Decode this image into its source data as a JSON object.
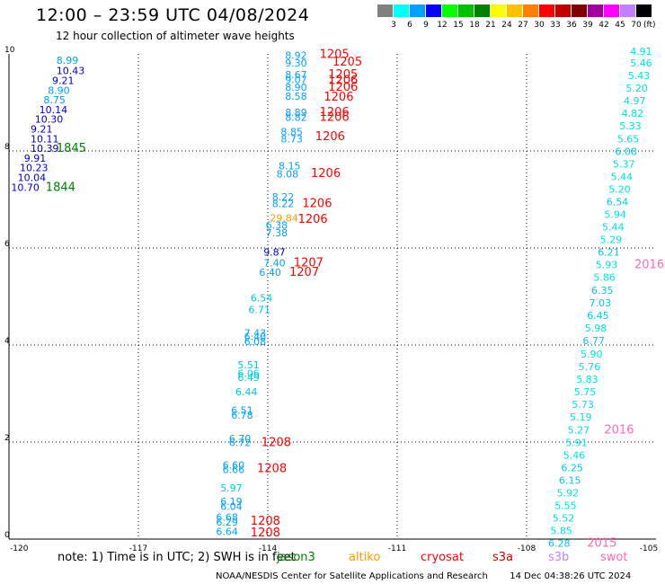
{
  "header": {
    "title": "12:00 – 23:59 UTC 04/08/2024",
    "subtitle": "12 hour collection of altimeter wave heights"
  },
  "colorbar": {
    "colors": [
      "#808080",
      "#00ffff",
      "#00a0ff",
      "#0000ff",
      "#00ff00",
      "#00c000",
      "#008000",
      "#ffff00",
      "#ffc000",
      "#ff8000",
      "#ff0000",
      "#c00000",
      "#800000",
      "#a000a0",
      "#ff00ff",
      "#c080ff",
      "#000000"
    ],
    "labels": [
      "3",
      "6",
      "9",
      "12",
      "15",
      "18",
      "21",
      "24",
      "27",
      "30",
      "33",
      "36",
      "39",
      "42",
      "45",
      "70"
    ],
    "unit": "(ft)"
  },
  "map": {
    "lon_range": [
      -120,
      -105
    ],
    "lat_range": [
      0,
      10
    ],
    "x_ticks": [
      "-120",
      "-117",
      "-114",
      "-111",
      "-108",
      "-105"
    ],
    "y_ticks": [
      "0",
      "2",
      "4",
      "6",
      "8",
      "10"
    ],
    "wave_labels": [
      {
        "lon": -118.9,
        "lat": 9.8,
        "text": "8.99",
        "color": "#00a0ff"
      },
      {
        "lon": -118.9,
        "lat": 9.58,
        "text": "10.43",
        "color": "#0000c0"
      },
      {
        "lon": -119.0,
        "lat": 9.38,
        "text": "9.21",
        "color": "#0000c0"
      },
      {
        "lon": -119.1,
        "lat": 9.18,
        "text": "8.90",
        "color": "#00a0ff"
      },
      {
        "lon": -119.2,
        "lat": 8.98,
        "text": "8.75",
        "color": "#00a0ff"
      },
      {
        "lon": -119.3,
        "lat": 8.78,
        "text": "10.14",
        "color": "#0000c0"
      },
      {
        "lon": -119.4,
        "lat": 8.58,
        "text": "10.30",
        "color": "#0000c0"
      },
      {
        "lon": -119.5,
        "lat": 8.38,
        "text": "9.21",
        "color": "#0000c0"
      },
      {
        "lon": -119.5,
        "lat": 8.18,
        "text": "10.11",
        "color": "#0000c0"
      },
      {
        "lon": -119.5,
        "lat": 7.98,
        "text": "10.39",
        "color": "#0000c0"
      },
      {
        "lon": -119.65,
        "lat": 7.78,
        "text": "9.91",
        "color": "#0000c0"
      },
      {
        "lon": -119.75,
        "lat": 7.58,
        "text": "10.23",
        "color": "#0000c0"
      },
      {
        "lon": -119.8,
        "lat": 7.38,
        "text": "10.04",
        "color": "#0000c0"
      },
      {
        "lon": -119.95,
        "lat": 7.18,
        "text": "10.70",
        "color": "#0000c0"
      },
      {
        "lon": -113.6,
        "lat": 9.9,
        "text": "8.92",
        "color": "#00a0ff"
      },
      {
        "lon": -113.6,
        "lat": 9.74,
        "text": "9.30",
        "color": "#00a0ff"
      },
      {
        "lon": -113.6,
        "lat": 9.5,
        "text": "8.67",
        "color": "#00a0ff"
      },
      {
        "lon": -113.6,
        "lat": 9.4,
        "text": "9.07",
        "color": "#00a0ff"
      },
      {
        "lon": -113.6,
        "lat": 9.24,
        "text": "8.90",
        "color": "#00a0ff"
      },
      {
        "lon": -113.6,
        "lat": 9.06,
        "text": "8.58",
        "color": "#00a0ff"
      },
      {
        "lon": -113.6,
        "lat": 8.72,
        "text": "8.89",
        "color": "#00a0ff"
      },
      {
        "lon": -113.6,
        "lat": 8.62,
        "text": "8.82",
        "color": "#00a0ff"
      },
      {
        "lon": -113.7,
        "lat": 8.32,
        "text": "8.85",
        "color": "#00a0ff"
      },
      {
        "lon": -113.7,
        "lat": 8.18,
        "text": "8.73",
        "color": "#00a0ff"
      },
      {
        "lon": -113.75,
        "lat": 7.62,
        "text": "8.15",
        "color": "#00a0ff"
      },
      {
        "lon": -113.8,
        "lat": 7.45,
        "text": "8.08",
        "color": "#00a0ff"
      },
      {
        "lon": -113.9,
        "lat": 6.98,
        "text": "8.22",
        "color": "#00a0ff"
      },
      {
        "lon": -113.9,
        "lat": 6.84,
        "text": "8.22",
        "color": "#00a0ff"
      },
      {
        "lon": -113.95,
        "lat": 6.55,
        "text": "29.84",
        "color": "#ff9900"
      },
      {
        "lon": -114.05,
        "lat": 6.4,
        "text": "6.38",
        "color": "#00a0ff"
      },
      {
        "lon": -114.05,
        "lat": 6.24,
        "text": "7.38",
        "color": "#00a0ff"
      },
      {
        "lon": -114.1,
        "lat": 5.84,
        "text": "9.87",
        "color": "#0000c0"
      },
      {
        "lon": -114.1,
        "lat": 5.62,
        "text": "7.40",
        "color": "#00a0ff"
      },
      {
        "lon": -114.2,
        "lat": 5.43,
        "text": "6.40",
        "color": "#00a0ff"
      },
      {
        "lon": -114.4,
        "lat": 4.9,
        "text": "6.54",
        "color": "#00c8e0"
      },
      {
        "lon": -114.45,
        "lat": 4.66,
        "text": "6.71",
        "color": "#00c8e0"
      },
      {
        "lon": -114.55,
        "lat": 4.18,
        "text": "7.43",
        "color": "#00a0ff"
      },
      {
        "lon": -114.55,
        "lat": 4.1,
        "text": "6.40",
        "color": "#00a0ff"
      },
      {
        "lon": -114.55,
        "lat": 4.0,
        "text": "6.08",
        "color": "#00a0ff"
      },
      {
        "lon": -114.7,
        "lat": 3.52,
        "text": "5.51",
        "color": "#00c8e0"
      },
      {
        "lon": -114.7,
        "lat": 3.34,
        "text": "6.06",
        "color": "#00c8e0"
      },
      {
        "lon": -114.7,
        "lat": 3.26,
        "text": "6.49",
        "color": "#00c8e0"
      },
      {
        "lon": -114.75,
        "lat": 2.96,
        "text": "6.44",
        "color": "#00c8e0"
      },
      {
        "lon": -114.85,
        "lat": 2.58,
        "text": "6.51",
        "color": "#00a0ff"
      },
      {
        "lon": -114.85,
        "lat": 2.48,
        "text": "6.78",
        "color": "#00a0ff"
      },
      {
        "lon": -114.9,
        "lat": 2.0,
        "text": "6.70",
        "color": "#00a0ff"
      },
      {
        "lon": -114.9,
        "lat": 1.92,
        "text": "6.72",
        "color": "#00a0ff"
      },
      {
        "lon": -115.05,
        "lat": 1.45,
        "text": "6.60",
        "color": "#00a0ff"
      },
      {
        "lon": -115.05,
        "lat": 1.36,
        "text": "6.66",
        "color": "#00a0ff"
      },
      {
        "lon": -115.1,
        "lat": 0.98,
        "text": "5.97",
        "color": "#00c8e0"
      },
      {
        "lon": -115.1,
        "lat": 0.7,
        "text": "6.19",
        "color": "#00a0ff"
      },
      {
        "lon": -115.1,
        "lat": 0.6,
        "text": "6.04",
        "color": "#00a0ff"
      },
      {
        "lon": -115.2,
        "lat": 0.38,
        "text": "6.68",
        "color": "#00a0ff"
      },
      {
        "lon": -115.2,
        "lat": 0.28,
        "text": "6.29",
        "color": "#00a0ff"
      },
      {
        "lon": -115.2,
        "lat": 0.08,
        "text": "6.64",
        "color": "#00a0ff"
      },
      {
        "lon": -105.6,
        "lat": 9.98,
        "text": "4.91",
        "color": "#00e0e0"
      },
      {
        "lon": -105.6,
        "lat": 9.74,
        "text": "5.46",
        "color": "#00e0e0"
      },
      {
        "lon": -105.65,
        "lat": 9.48,
        "text": "5.43",
        "color": "#00e0e0"
      },
      {
        "lon": -105.7,
        "lat": 9.22,
        "text": "5.20",
        "color": "#00e0e0"
      },
      {
        "lon": -105.75,
        "lat": 8.96,
        "text": "4.97",
        "color": "#00e0e0"
      },
      {
        "lon": -105.8,
        "lat": 8.7,
        "text": "4.82",
        "color": "#00e0e0"
      },
      {
        "lon": -105.85,
        "lat": 8.44,
        "text": "5.33",
        "color": "#00e0e0"
      },
      {
        "lon": -105.9,
        "lat": 8.18,
        "text": "5.65",
        "color": "#00e0e0"
      },
      {
        "lon": -105.95,
        "lat": 7.92,
        "text": "6.08",
        "color": "#00c8e0"
      },
      {
        "lon": -106.0,
        "lat": 7.66,
        "text": "5.37",
        "color": "#00e0e0"
      },
      {
        "lon": -106.05,
        "lat": 7.4,
        "text": "5.44",
        "color": "#00e0e0"
      },
      {
        "lon": -106.1,
        "lat": 7.14,
        "text": "5.20",
        "color": "#00e0e0"
      },
      {
        "lon": -106.15,
        "lat": 6.88,
        "text": "6.54",
        "color": "#00c8e0"
      },
      {
        "lon": -106.2,
        "lat": 6.62,
        "text": "5.94",
        "color": "#00e0e0"
      },
      {
        "lon": -106.25,
        "lat": 6.36,
        "text": "5.44",
        "color": "#00e0e0"
      },
      {
        "lon": -106.3,
        "lat": 6.1,
        "text": "5.29",
        "color": "#00e0e0"
      },
      {
        "lon": -106.35,
        "lat": 5.84,
        "text": "6.21",
        "color": "#00c8e0"
      },
      {
        "lon": -106.4,
        "lat": 5.58,
        "text": "5.93",
        "color": "#00e0e0"
      },
      {
        "lon": -106.45,
        "lat": 5.32,
        "text": "5.86",
        "color": "#00e0e0"
      },
      {
        "lon": -106.5,
        "lat": 5.06,
        "text": "6.35",
        "color": "#00c8e0"
      },
      {
        "lon": -106.55,
        "lat": 4.8,
        "text": "7.03",
        "color": "#00c8e0"
      },
      {
        "lon": -106.6,
        "lat": 4.54,
        "text": "6.45",
        "color": "#00c8e0"
      },
      {
        "lon": -106.65,
        "lat": 4.28,
        "text": "5.98",
        "color": "#00e0e0"
      },
      {
        "lon": -106.7,
        "lat": 4.02,
        "text": "6.77",
        "color": "#00c8e0"
      },
      {
        "lon": -106.75,
        "lat": 3.74,
        "text": "5.90",
        "color": "#00e0e0"
      },
      {
        "lon": -106.8,
        "lat": 3.48,
        "text": "5.76",
        "color": "#00e0e0"
      },
      {
        "lon": -106.85,
        "lat": 3.22,
        "text": "5.83",
        "color": "#00e0e0"
      },
      {
        "lon": -106.9,
        "lat": 2.96,
        "text": "5.75",
        "color": "#00e0e0"
      },
      {
        "lon": -106.95,
        "lat": 2.7,
        "text": "5.73",
        "color": "#00e0e0"
      },
      {
        "lon": -107.0,
        "lat": 2.44,
        "text": "5.19",
        "color": "#00e0e0"
      },
      {
        "lon": -107.05,
        "lat": 2.18,
        "text": "5.27",
        "color": "#00e0e0"
      },
      {
        "lon": -107.1,
        "lat": 1.92,
        "text": "5.91",
        "color": "#00e0e0"
      },
      {
        "lon": -107.15,
        "lat": 1.66,
        "text": "5.46",
        "color": "#00e0e0"
      },
      {
        "lon": -107.2,
        "lat": 1.4,
        "text": "6.25",
        "color": "#00c8e0"
      },
      {
        "lon": -107.25,
        "lat": 1.14,
        "text": "6.15",
        "color": "#00c8e0"
      },
      {
        "lon": -107.3,
        "lat": 0.88,
        "text": "5.92",
        "color": "#00e0e0"
      },
      {
        "lon": -107.35,
        "lat": 0.62,
        "text": "5.55",
        "color": "#00e0e0"
      },
      {
        "lon": -107.4,
        "lat": 0.36,
        "text": "5.52",
        "color": "#00e0e0"
      },
      {
        "lon": -107.45,
        "lat": 0.1,
        "text": "5.85",
        "color": "#00e0e0"
      },
      {
        "lon": -107.5,
        "lat": -0.16,
        "text": "6.28",
        "color": "#00c8e0"
      }
    ],
    "time_labels": [
      {
        "lon": -118.9,
        "lat": 7.98,
        "text": "1845",
        "color": "#008000"
      },
      {
        "lon": -119.15,
        "lat": 7.18,
        "text": "1844",
        "color": "#008000"
      },
      {
        "lon": -112.8,
        "lat": 9.92,
        "text": "1205",
        "color": "#ff0000"
      },
      {
        "lon": -112.5,
        "lat": 9.76,
        "text": "1205",
        "color": "#ff0000"
      },
      {
        "lon": -112.6,
        "lat": 9.5,
        "text": "1205",
        "color": "#ff0000"
      },
      {
        "lon": -112.6,
        "lat": 9.38,
        "text": "1206",
        "color": "#ff0000"
      },
      {
        "lon": -112.6,
        "lat": 9.24,
        "text": "1206",
        "color": "#ff0000"
      },
      {
        "lon": -112.7,
        "lat": 9.04,
        "text": "1206",
        "color": "#ff0000"
      },
      {
        "lon": -112.8,
        "lat": 8.72,
        "text": "1206",
        "color": "#ff0000"
      },
      {
        "lon": -112.8,
        "lat": 8.62,
        "text": "1206",
        "color": "#ff0000"
      },
      {
        "lon": -112.9,
        "lat": 8.22,
        "text": "1206",
        "color": "#ff0000"
      },
      {
        "lon": -113.0,
        "lat": 7.46,
        "text": "1206",
        "color": "#ff0000"
      },
      {
        "lon": -113.2,
        "lat": 6.84,
        "text": "1206",
        "color": "#ff0000"
      },
      {
        "lon": -113.3,
        "lat": 6.52,
        "text": "1206",
        "color": "#ff0000"
      },
      {
        "lon": -113.4,
        "lat": 5.62,
        "text": "1207",
        "color": "#ff0000"
      },
      {
        "lon": -113.5,
        "lat": 5.43,
        "text": "1207",
        "color": "#ff0000"
      },
      {
        "lon": -114.15,
        "lat": 1.92,
        "text": "1208",
        "color": "#ff0000"
      },
      {
        "lon": -114.25,
        "lat": 1.38,
        "text": "1208",
        "color": "#ff0000"
      },
      {
        "lon": -114.4,
        "lat": 0.3,
        "text": "1208",
        "color": "#ff0000"
      },
      {
        "lon": -114.4,
        "lat": 0.06,
        "text": "1208",
        "color": "#ff0000"
      },
      {
        "lon": -105.5,
        "lat": 5.58,
        "text": "2016",
        "color": "#ff69b4"
      },
      {
        "lon": -106.2,
        "lat": 2.18,
        "text": "2016",
        "color": "#ff69b4"
      },
      {
        "lon": -106.6,
        "lat": -0.16,
        "text": "2015",
        "color": "#ff69b4"
      }
    ]
  },
  "footer": {
    "note": "note:  1) Time is in UTC; 2) SWH is in feet",
    "legend": [
      {
        "text": "jason3",
        "color": "#008000"
      },
      {
        "text": "altiko",
        "color": "#ff9900"
      },
      {
        "text": "cryosat",
        "color": "#ff0000"
      },
      {
        "text": "s3a",
        "color": "#c00000"
      },
      {
        "text": "s3b",
        "color": "#c080ff"
      },
      {
        "text": "swot",
        "color": "#ff69b4"
      }
    ],
    "credit": "NOAA/NESDIS Center for Satellite Applications and Research",
    "timestamp": "14 Dec 04:38:26 UTC 2024"
  }
}
